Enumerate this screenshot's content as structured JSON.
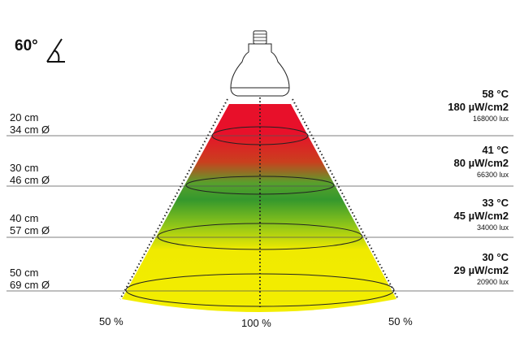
{
  "angle_label": "60°",
  "levels": [
    {
      "distance": "20 cm",
      "diameter": "34 cm Ø",
      "temperature": "58 °C",
      "irradiance": "180 µW/cm2",
      "lux": "168000 lux"
    },
    {
      "distance": "30 cm",
      "diameter": "46 cm Ø",
      "temperature": "41 °C",
      "irradiance": "80 µW/cm2",
      "lux": "66300 lux"
    },
    {
      "distance": "40 cm",
      "diameter": "57 cm Ø",
      "temperature": "33 °C",
      "irradiance": "45 µW/cm2",
      "lux": "34000 lux"
    },
    {
      "distance": "50 cm",
      "diameter": "69 cm Ø",
      "temperature": "30 °C",
      "irradiance": "29 µW/cm2",
      "lux": "20900 lux"
    }
  ],
  "intensity_labels": {
    "left": "50 %",
    "center": "100 %",
    "right": "50 %"
  },
  "colors": {
    "hot": "#e8102a",
    "warm": "#3a9e2c",
    "cool": "#f2ec00",
    "lines": "#666666"
  }
}
